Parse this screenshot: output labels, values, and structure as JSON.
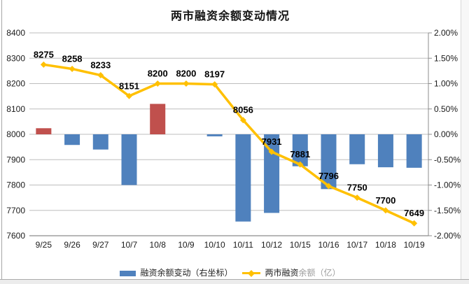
{
  "chart_data": {
    "type": "combo-bar-line",
    "title": "两市融资余额变动情况",
    "categories": [
      "9/25",
      "9/26",
      "9/27",
      "10/7",
      "10/8",
      "10/9",
      "10/10",
      "10/11",
      "10/12",
      "10/15",
      "10/16",
      "10/17",
      "10/18",
      "10/19"
    ],
    "series": [
      {
        "name": "融资余额变动（右坐标）",
        "type": "bar",
        "axis": "right",
        "unit": "%",
        "values": [
          0.12,
          -0.21,
          -0.3,
          -1.0,
          0.6,
          0.0,
          -0.04,
          -1.72,
          -1.55,
          -0.63,
          -1.08,
          -0.59,
          -0.65,
          -0.66
        ],
        "positive_color": "#C0504D",
        "negative_color": "#4F81BD"
      },
      {
        "name": "两市融资余额（亿）",
        "type": "line",
        "axis": "left",
        "values": [
          8275,
          8258,
          8233,
          8151,
          8200,
          8200,
          8197,
          8056,
          7931,
          7881,
          7796,
          7750,
          7700,
          7649
        ],
        "data_labels": [
          "8275",
          "8258",
          "8233",
          "8151",
          "8200",
          "8200",
          "8197",
          "8056",
          "7931",
          "7881",
          "7796",
          "7750",
          "7700",
          "7649"
        ],
        "color": "#FFC000"
      }
    ],
    "left_axis": {
      "min": 7600,
      "max": 8400,
      "step": 100,
      "labels": [
        "8400",
        "8300",
        "8200",
        "8100",
        "8000",
        "7900",
        "7800",
        "7700",
        "7600"
      ]
    },
    "right_axis": {
      "min": -2.0,
      "max": 2.0,
      "step": 0.5,
      "labels": [
        "2.00%",
        "1.50%",
        "1.00%",
        "0.50%",
        "0.00%",
        "-0.50%",
        "-1.00%",
        "-1.50%",
        "-2.00%"
      ]
    },
    "grid": true,
    "legend_position": "bottom"
  },
  "legend": {
    "bar_label": "融资余额变动（右坐标）",
    "line_label_part1": "两市融资",
    "line_label_part2": "余额（亿）"
  },
  "colors": {
    "bar_positive": "#C0504D",
    "bar_negative": "#4F81BD",
    "line": "#FFC000",
    "grid": "#bdbdbd",
    "axis_line": "#8c8c8c",
    "axis_text": "#1a1a1a",
    "data_label_text": "#000000"
  }
}
